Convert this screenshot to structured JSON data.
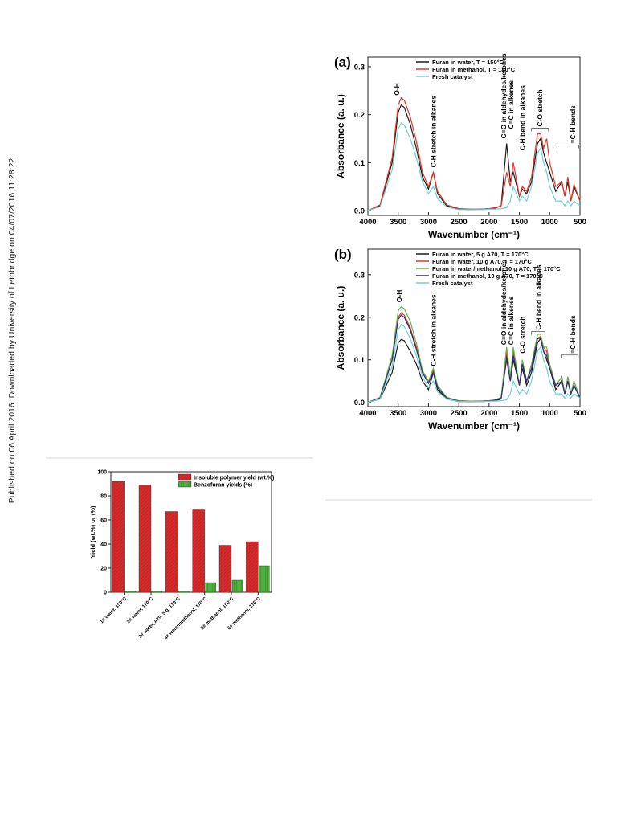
{
  "side_note": "Published on 06 April 2016. Downloaded by University of Lethbridge on 04/07/2016 11:28:22.",
  "chart_data": [
    {
      "type": "line",
      "panel": "(a)",
      "xlabel": "Wavenumber (cm⁻¹)",
      "ylabel": "Absorbance (a. u.)",
      "xlim": [
        4000,
        500
      ],
      "ylim": [
        -0.01,
        0.32
      ],
      "xticks": [
        4000,
        3500,
        3000,
        2500,
        2000,
        1500,
        1000,
        500
      ],
      "yticks": [
        {
          "value": 0,
          "label": "0.0"
        },
        0.1,
        0.2,
        0.3
      ],
      "legend": "upper left",
      "x": [
        4000,
        3800,
        3600,
        3500,
        3450,
        3400,
        3300,
        3200,
        3100,
        3000,
        2920,
        2850,
        2700,
        2500,
        2300,
        2100,
        2000,
        1900,
        1800,
        1710,
        1650,
        1600,
        1500,
        1450,
        1380,
        1300,
        1200,
        1150,
        1100,
        1050,
        1000,
        900,
        800,
        750,
        700,
        650,
        600,
        500
      ],
      "series": [
        {
          "name": "Furan in water, T = 150°C",
          "color": "#1a1a1a",
          "values": [
            0.0,
            0.01,
            0.1,
            0.205,
            0.22,
            0.215,
            0.18,
            0.13,
            0.07,
            0.045,
            0.08,
            0.035,
            0.01,
            0.003,
            0.002,
            0.003,
            0.004,
            0.005,
            0.01,
            0.14,
            0.06,
            0.08,
            0.03,
            0.045,
            0.035,
            0.06,
            0.14,
            0.15,
            0.12,
            0.1,
            0.08,
            0.04,
            0.06,
            0.03,
            0.06,
            0.02,
            0.05,
            0.02
          ]
        },
        {
          "name": "Furan in methanol, T = 150°C",
          "color": "#e8322a",
          "values": [
            0.0,
            0.012,
            0.11,
            0.22,
            0.235,
            0.23,
            0.195,
            0.145,
            0.08,
            0.05,
            0.08,
            0.04,
            0.012,
            0.004,
            0.003,
            0.003,
            0.004,
            0.006,
            0.01,
            0.08,
            0.05,
            0.1,
            0.03,
            0.05,
            0.04,
            0.07,
            0.16,
            0.16,
            0.13,
            0.15,
            0.1,
            0.05,
            0.06,
            0.03,
            0.07,
            0.02,
            0.055,
            0.02
          ]
        },
        {
          "name": "Fresh catalyst",
          "color": "#6fd0d0",
          "values": [
            0.0,
            0.008,
            0.085,
            0.17,
            0.183,
            0.178,
            0.15,
            0.11,
            0.06,
            0.035,
            0.05,
            0.025,
            0.008,
            0.002,
            0.002,
            0.002,
            0.003,
            0.003,
            0.004,
            0.006,
            0.02,
            0.05,
            0.02,
            0.03,
            0.02,
            0.05,
            0.12,
            0.13,
            0.1,
            0.08,
            0.05,
            0.02,
            0.02,
            0.01,
            0.02,
            0.01,
            0.02,
            0.01
          ]
        }
      ],
      "annotations": [
        "O-H",
        "C-H stretch in alkanes",
        "C=O in aldehydes/ketones",
        "C=C in alkenes",
        "C-H bend in alkanes",
        "C-O stretch",
        "=C-H bends"
      ]
    },
    {
      "type": "line",
      "panel": "(b)",
      "xlabel": "Wavenumber (cm⁻¹)",
      "ylabel": "Absorbance (a. u.)",
      "xlim": [
        4000,
        500
      ],
      "ylim": [
        -0.01,
        0.36
      ],
      "xticks": [
        4000,
        3500,
        3000,
        2500,
        2000,
        1500,
        1000,
        500
      ],
      "yticks": [
        {
          "value": 0,
          "label": "0.0"
        },
        0.1,
        0.2,
        0.3
      ],
      "legend": "upper left",
      "x": [
        4000,
        3800,
        3600,
        3500,
        3450,
        3400,
        3300,
        3200,
        3100,
        3000,
        2920,
        2850,
        2700,
        2500,
        2300,
        2100,
        2000,
        1900,
        1800,
        1710,
        1650,
        1600,
        1500,
        1450,
        1380,
        1300,
        1200,
        1150,
        1100,
        1050,
        1000,
        900,
        800,
        750,
        700,
        650,
        600,
        500
      ],
      "series": [
        {
          "name": "Furan in water, 5 g A70, T = 170°C",
          "color": "#1a1a1a",
          "values": [
            0.0,
            0.008,
            0.07,
            0.14,
            0.148,
            0.145,
            0.12,
            0.09,
            0.05,
            0.03,
            0.07,
            0.03,
            0.008,
            0.002,
            0.002,
            0.002,
            0.003,
            0.004,
            0.008,
            0.11,
            0.05,
            0.1,
            0.04,
            0.08,
            0.04,
            0.07,
            0.14,
            0.15,
            0.12,
            0.1,
            0.08,
            0.03,
            0.05,
            0.02,
            0.05,
            0.02,
            0.04,
            0.01
          ]
        },
        {
          "name": "Furan in water, 10 g A70, T = 170°C",
          "color": "#e8322a",
          "values": [
            0.0,
            0.01,
            0.1,
            0.2,
            0.21,
            0.205,
            0.175,
            0.13,
            0.07,
            0.045,
            0.075,
            0.035,
            0.01,
            0.003,
            0.002,
            0.003,
            0.004,
            0.005,
            0.01,
            0.12,
            0.06,
            0.12,
            0.04,
            0.09,
            0.05,
            0.08,
            0.15,
            0.155,
            0.13,
            0.12,
            0.09,
            0.04,
            0.06,
            0.02,
            0.06,
            0.02,
            0.05,
            0.01
          ]
        },
        {
          "name": "Furan in water/methanol, 10 g A70, T = 170°C",
          "color": "#6ab04c",
          "values": [
            0.0,
            0.012,
            0.11,
            0.215,
            0.225,
            0.22,
            0.19,
            0.14,
            0.075,
            0.05,
            0.08,
            0.04,
            0.012,
            0.004,
            0.003,
            0.003,
            0.004,
            0.006,
            0.012,
            0.13,
            0.06,
            0.13,
            0.04,
            0.1,
            0.05,
            0.09,
            0.16,
            0.16,
            0.13,
            0.13,
            0.09,
            0.04,
            0.06,
            0.02,
            0.06,
            0.02,
            0.05,
            0.01
          ]
        },
        {
          "name": "Furan in methanol, 10 g A70, T = 170°C",
          "color": "#2a2f7a",
          "values": [
            0.0,
            0.01,
            0.1,
            0.195,
            0.205,
            0.2,
            0.17,
            0.125,
            0.07,
            0.045,
            0.07,
            0.035,
            0.01,
            0.003,
            0.002,
            0.003,
            0.004,
            0.005,
            0.01,
            0.1,
            0.05,
            0.11,
            0.04,
            0.09,
            0.05,
            0.08,
            0.15,
            0.15,
            0.12,
            0.11,
            0.08,
            0.04,
            0.05,
            0.02,
            0.05,
            0.02,
            0.04,
            0.01
          ]
        },
        {
          "name": "Fresh catalyst",
          "color": "#6fd0d0",
          "values": [
            0.0,
            0.008,
            0.085,
            0.17,
            0.183,
            0.178,
            0.15,
            0.11,
            0.06,
            0.035,
            0.05,
            0.025,
            0.008,
            0.002,
            0.002,
            0.002,
            0.003,
            0.003,
            0.004,
            0.006,
            0.02,
            0.05,
            0.02,
            0.03,
            0.02,
            0.05,
            0.12,
            0.13,
            0.1,
            0.08,
            0.05,
            0.02,
            0.02,
            0.01,
            0.02,
            0.01,
            0.02,
            0.01
          ]
        }
      ],
      "annotations": [
        "O-H",
        "C-H stretch in alkanes",
        "C=O in aldehydes/ketones",
        "C=C in alkenes",
        "C-O stretch",
        "C-H bend in alkanes",
        "=C-H bends"
      ]
    },
    {
      "type": "bar",
      "ylabel": "Yield (wt.%) or (%)",
      "ylim": [
        0,
        100
      ],
      "yticks": [
        0,
        20,
        40,
        60,
        80,
        100
      ],
      "legend": "upper right",
      "categories": [
        "1# water, 150°C",
        "2# water, 170°C",
        "3# water, A70: 5 g, 170°C",
        "4# water/methanol, 170°C",
        "5# methanol, 150°C",
        "6# methanol, 170°C"
      ],
      "series": [
        {
          "name": "Insoluble polymer yield (wt.%)",
          "color": "#d42a2a",
          "values": [
            92,
            89,
            67,
            69,
            39,
            42
          ]
        },
        {
          "name": "Benzofuran yields (%)",
          "color": "#4fae3c",
          "values": [
            1,
            1,
            1,
            8,
            10,
            22
          ]
        }
      ]
    }
  ]
}
